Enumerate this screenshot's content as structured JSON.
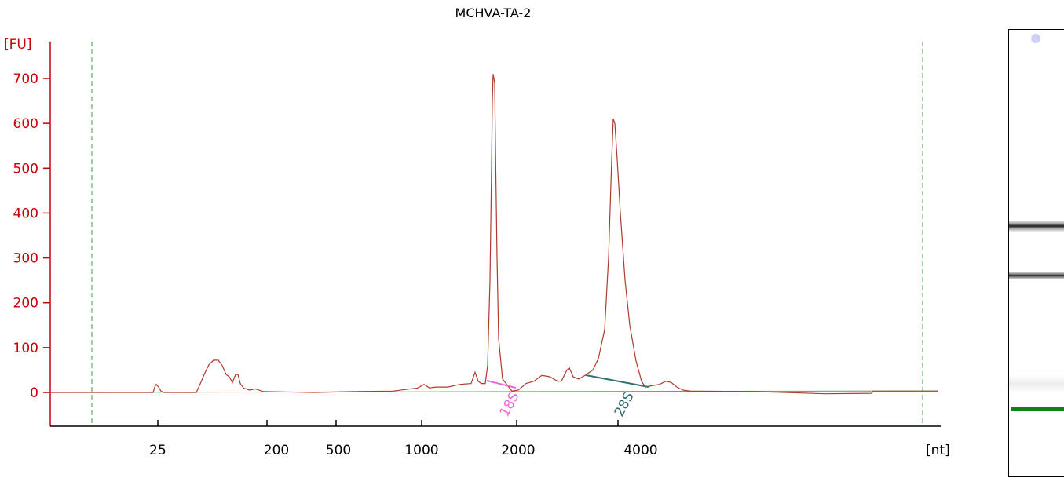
{
  "chart_data": {
    "type": "line",
    "title": "MCHVA-TA-2",
    "ylabel": "[FU]",
    "xlabel": "[nt]",
    "ylim": [
      -75,
      780
    ],
    "y_ticks": [
      0,
      100,
      200,
      300,
      400,
      500,
      600,
      700
    ],
    "x_ticks": [
      "25",
      "200",
      "500",
      "1000",
      "2000",
      "4000"
    ],
    "x_scale": "marker calibrated (non-linear)",
    "colors": {
      "trace": "#b03a2e",
      "axis": "#cc0000",
      "baseline": "#5aa05a",
      "marker_lines": "#4a9a4a",
      "label_18s": "#ee66dd",
      "label_28s": "#2f6f6f",
      "gel_marker": "#128012"
    },
    "series": [
      {
        "x": [
          "25",
          "200",
          "500",
          "1000",
          "2000",
          "4000"
        ],
        "values": [
          18,
          8,
          3,
          8,
          20,
          20
        ]
      }
    ],
    "peaks": [
      {
        "label": "18S",
        "x": "2000",
        "value": 710
      },
      {
        "label": "28S",
        "x": "4000",
        "value": 610
      }
    ],
    "peak_labels": [
      "18S",
      "28S"
    ]
  }
}
